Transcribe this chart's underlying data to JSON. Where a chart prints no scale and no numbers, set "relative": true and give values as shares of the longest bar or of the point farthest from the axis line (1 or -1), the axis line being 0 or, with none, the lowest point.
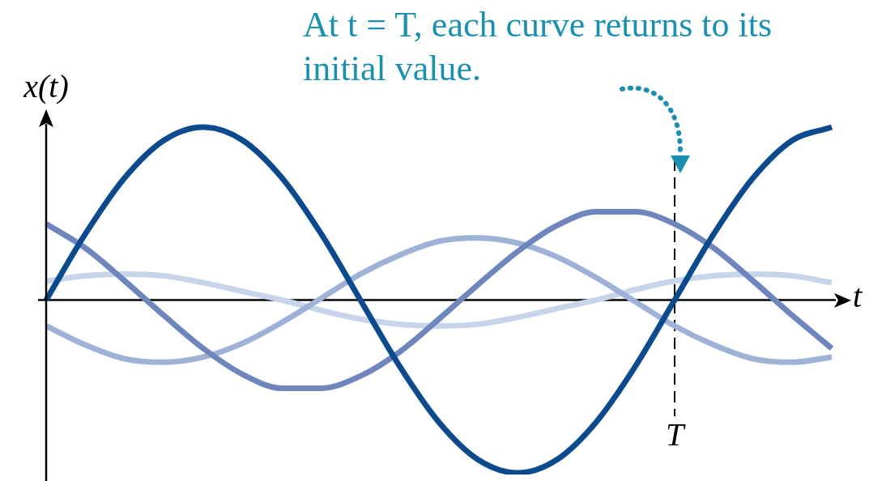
{
  "chart_data": {
    "type": "line",
    "relative": true,
    "xlabel": "t",
    "ylabel": "x(t)",
    "marker": "none",
    "annotations": [
      "At t = T, each curve returns to its initial value.",
      "T"
    ],
    "categories": [
      null,
      null,
      null,
      null,
      null,
      null,
      null,
      null,
      null,
      null,
      null,
      null,
      null,
      null,
      null,
      null,
      null,
      null,
      null,
      null,
      null
    ],
    "series": [
      {
        "color": "#0c4a8e",
        "values": [
          0,
          0.383,
          0.707,
          0.924,
          1,
          0.924,
          0.707,
          0.383,
          0,
          -0.383,
          -0.707,
          -0.924,
          -1,
          -0.924,
          -0.707,
          -0.383,
          0,
          0.383,
          0.707,
          0.924,
          1
        ]
      },
      {
        "color": "#6f86bd",
        "values": [
          0.44,
          0.3,
          0.11,
          -0.09,
          -0.28,
          -0.43,
          -0.51,
          -0.51,
          -0.44,
          -0.3,
          -0.11,
          0.09,
          0.28,
          0.43,
          0.51,
          0.51,
          0.44,
          0.3,
          0.11,
          -0.09,
          -0.28
        ]
      },
      {
        "color": "#9db2d6",
        "values": [
          -0.15,
          -0.26,
          -0.34,
          -0.36,
          -0.33,
          -0.25,
          -0.13,
          0.01,
          0.15,
          0.26,
          0.34,
          0.36,
          0.33,
          0.25,
          0.13,
          -0.01,
          -0.15,
          -0.26,
          -0.34,
          -0.36,
          -0.33
        ]
      },
      {
        "color": "#c6d5ea",
        "values": [
          0.11,
          0.14,
          0.15,
          0.14,
          0.1,
          0.05,
          0,
          -0.06,
          -0.11,
          -0.14,
          -0.15,
          -0.14,
          -0.1,
          -0.05,
          0,
          0.06,
          0.11,
          0.14,
          0.15,
          0.14,
          0.1
        ]
      }
    ]
  }
}
